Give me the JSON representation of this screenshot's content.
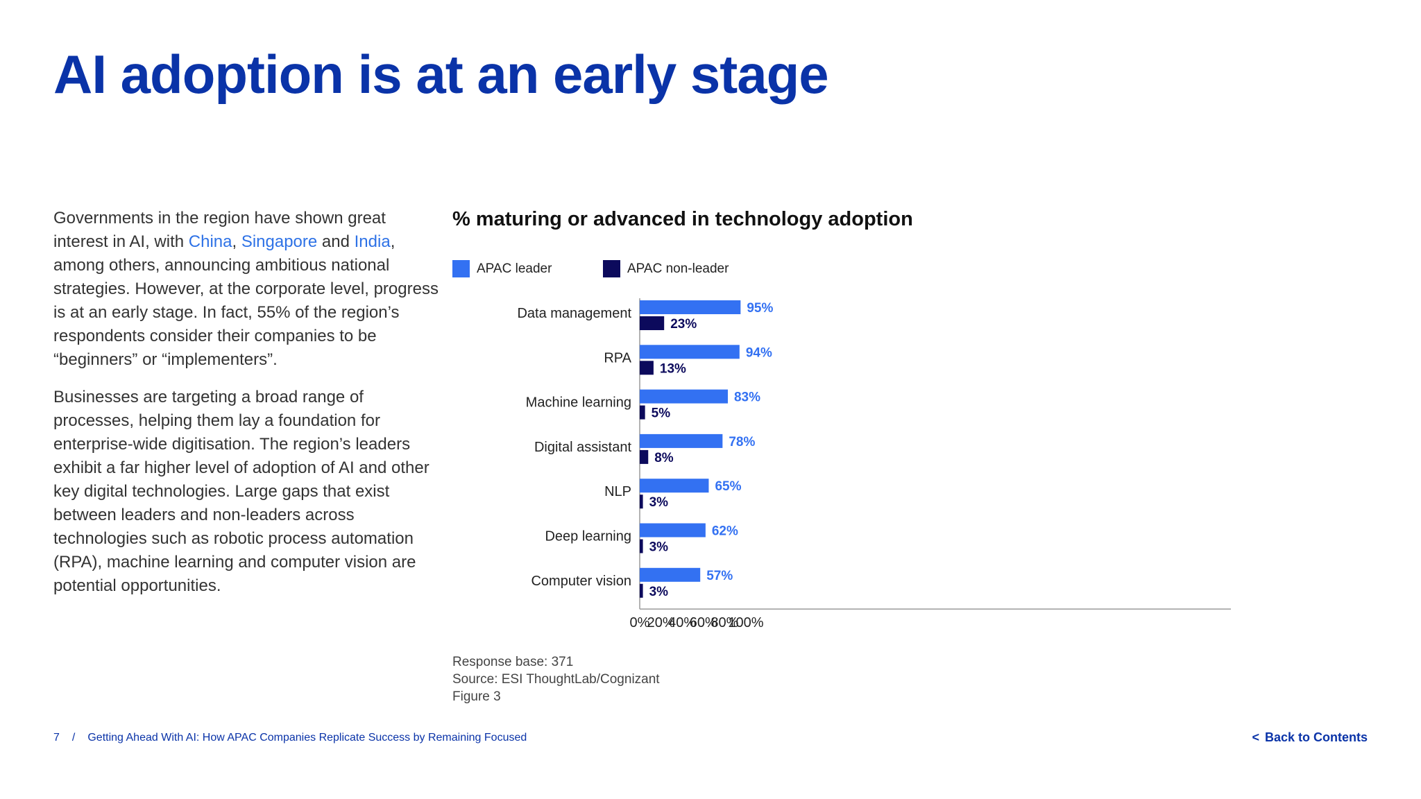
{
  "page": {
    "title": "AI adoption is at an early stage",
    "paragraph1": {
      "before": "Governments in the region have shown great interest in AI, with ",
      "link1": "China",
      "comma": ", ",
      "link2": "Singapore",
      "and": " and ",
      "link3": "India",
      "after": ", among others, announcing ambitious national strategies. However, at the corporate level, progress is at an early stage. In fact, 55% of the region’s respondents consider their companies to be “beginners” or “implementers”."
    },
    "paragraph2": "Businesses are targeting a broad range of processes, helping them lay a foundation for enterprise-wide digitisation. The region’s leaders exhibit a far higher level of adoption of AI and other key digital technologies. Large gaps that exist between leaders and non-leaders across technologies such as robotic process automation (RPA), machine learning and computer vision are potential opportunities.",
    "notes": {
      "response_base": "Response base: 371",
      "source": "Source: ESI ThoughtLab/Cognizant",
      "figure": "Figure 3"
    },
    "footer": {
      "page_number": "7",
      "separator": "/",
      "doc_title": "Getting Ahead With AI: How APAC Companies Replicate Success by Remaining Focused",
      "back_chevron": "<",
      "back_label": "Back to Contents"
    },
    "colors": {
      "title": "#0a33a8",
      "link": "#2e72e6",
      "leader": "#3371f2",
      "non_leader": "#0c0a5c"
    }
  },
  "chart_data": {
    "type": "bar",
    "orientation": "horizontal",
    "title": "% maturing or advanced in technology adoption",
    "categories": [
      "Data management",
      "RPA",
      "Machine learning",
      "Digital assistant",
      "NLP",
      "Deep learning",
      "Computer vision"
    ],
    "series": [
      {
        "name": "APAC leader",
        "color": "#3371f2",
        "values": [
          95,
          94,
          83,
          78,
          65,
          62,
          57
        ],
        "labels": [
          "95%",
          "94%",
          "83%",
          "78%",
          "65%",
          "62%",
          "57%"
        ]
      },
      {
        "name": "APAC non-leader",
        "color": "#0c0a5c",
        "values": [
          23,
          13,
          5,
          8,
          3,
          3,
          3
        ],
        "labels": [
          "23%",
          "13%",
          "5%",
          "8%",
          "3%",
          "3%",
          "3%"
        ]
      }
    ],
    "xlim": [
      0,
      111
    ],
    "xticks": [
      0,
      20,
      40,
      60,
      80,
      100
    ],
    "xtick_labels": [
      "0%",
      "20%",
      "40%",
      "60%",
      "80%",
      "100%"
    ],
    "legend": "top-left",
    "grid": false
  }
}
